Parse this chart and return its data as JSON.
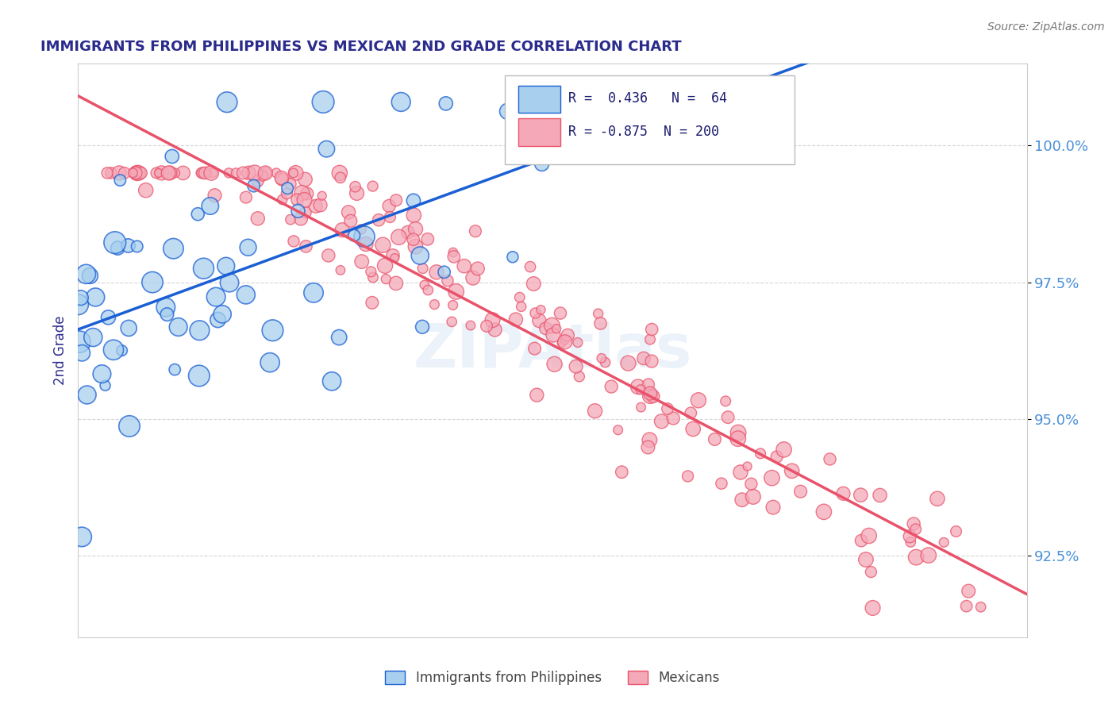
{
  "title": "IMMIGRANTS FROM PHILIPPINES VS MEXICAN 2ND GRADE CORRELATION CHART",
  "source_text": "Source: ZipAtlas.com",
  "ylabel": "2nd Grade",
  "xlim": [
    0.0,
    100.0
  ],
  "ylim": [
    91.0,
    101.5
  ],
  "yticks": [
    92.5,
    95.0,
    97.5,
    100.0
  ],
  "ytick_labels": [
    "92.5%",
    "95.0%",
    "97.5%",
    "100.0%"
  ],
  "blue_R": 0.436,
  "blue_N": 64,
  "pink_R": -0.875,
  "pink_N": 200,
  "blue_color": "#A8CFEE",
  "pink_color": "#F4A8B8",
  "blue_line_color": "#1A5FD4",
  "pink_line_color": "#E8526A",
  "legend_label_blue": "Immigrants from Philippines",
  "legend_label_pink": "Mexicans",
  "title_color": "#2B2B8C",
  "axis_label_color": "#2B2B8C",
  "tick_label_color": "#4A90D9",
  "watermark": "ZIPAtlas",
  "background_color": "#FFFFFF",
  "seed": 42
}
